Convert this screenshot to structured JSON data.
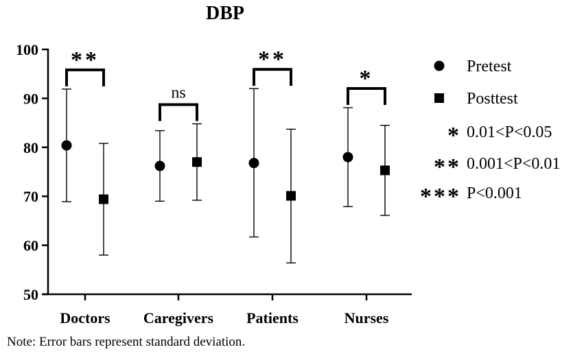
{
  "chart_data": {
    "type": "scatter",
    "title": "DBP",
    "categories": [
      "Doctors",
      "Caregivers",
      "Patients",
      "Nurses"
    ],
    "ylim": [
      50,
      100
    ],
    "yticks": [
      "50",
      "60",
      "70",
      "80",
      "90",
      "100"
    ],
    "series": [
      {
        "name": "Pretest",
        "marker": "circle",
        "means": [
          80.4,
          76.2,
          76.8,
          78.0
        ],
        "lower": [
          68.9,
          69.0,
          61.7,
          67.9
        ],
        "upper": [
          91.9,
          83.4,
          92.0,
          88.1
        ]
      },
      {
        "name": "Posttest",
        "marker": "square",
        "means": [
          69.4,
          77.0,
          70.1,
          75.3
        ],
        "lower": [
          58.0,
          69.2,
          56.4,
          66.1
        ],
        "upper": [
          80.8,
          84.8,
          83.7,
          84.5
        ]
      }
    ],
    "significance": [
      "**",
      "ns",
      "**",
      "*"
    ],
    "legend": [
      {
        "symbol": "circle",
        "label": "Pretest"
      },
      {
        "symbol": "square",
        "label": "Posttest"
      },
      {
        "symbol": "*",
        "label": "0.01<P<0.05"
      },
      {
        "symbol": "**",
        "label": "0.001<P<0.01"
      },
      {
        "symbol": "***",
        "label": "P<0.001"
      }
    ],
    "legend_position": "right",
    "grid": false
  },
  "note": "Note: Error bars represent standard deviation."
}
